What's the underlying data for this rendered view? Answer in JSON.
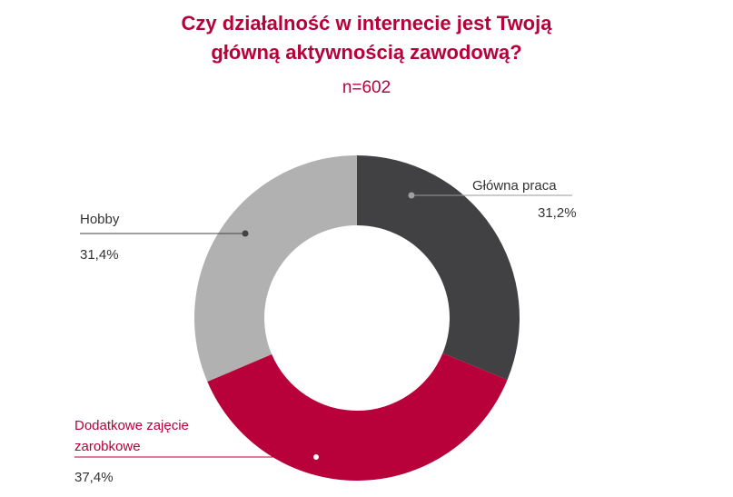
{
  "chart_data": {
    "type": "pie",
    "title_line1": "Czy działalność w internecie jest Twoją",
    "title_line2": "główną aktywnością zawodową?",
    "subtitle": "n=602",
    "slices": [
      {
        "label": "Główna praca",
        "value": 31.2,
        "value_label": "31,2%",
        "color": "#414143"
      },
      {
        "label_line1": "Dodatkowe zajęcie",
        "label_line2": "zarobkowe",
        "value": 37.4,
        "value_label": "37,4%",
        "color": "#b8003b"
      },
      {
        "label": "Hobby",
        "value": 31.4,
        "value_label": "31,4%",
        "color": "#b1b1b1"
      }
    ]
  }
}
